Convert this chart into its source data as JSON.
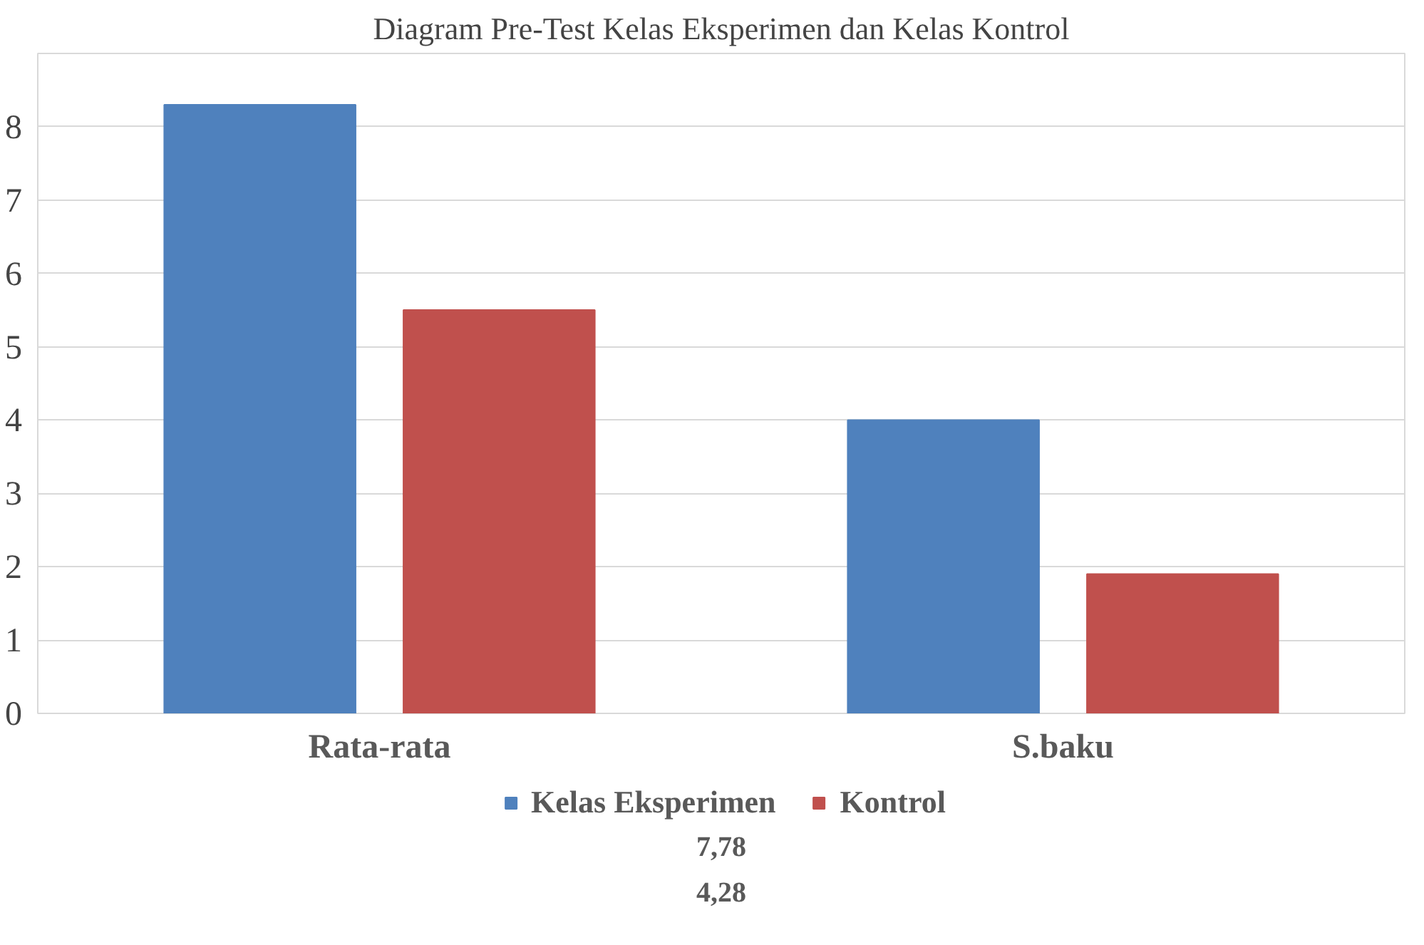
{
  "chart_data": {
    "type": "bar",
    "title": "Diagram Pre-Test Kelas Eksperimen dan Kelas Kontrol",
    "categories": [
      "Rata-rata",
      "S.baku"
    ],
    "series": [
      {
        "name": "Kelas Eksperimen",
        "color": "#4f81bd",
        "values": [
          8.3,
          4.0
        ]
      },
      {
        "name": "Kontrol",
        "color": "#c0504d",
        "values": [
          5.5,
          1.9
        ]
      }
    ],
    "ylim": [
      0,
      9
    ],
    "yticks": [
      0,
      1,
      2,
      3,
      4,
      5,
      6,
      7,
      8
    ],
    "grid": "y",
    "legend": "bottom",
    "annotations": [
      "7,78",
      "4,28"
    ]
  }
}
